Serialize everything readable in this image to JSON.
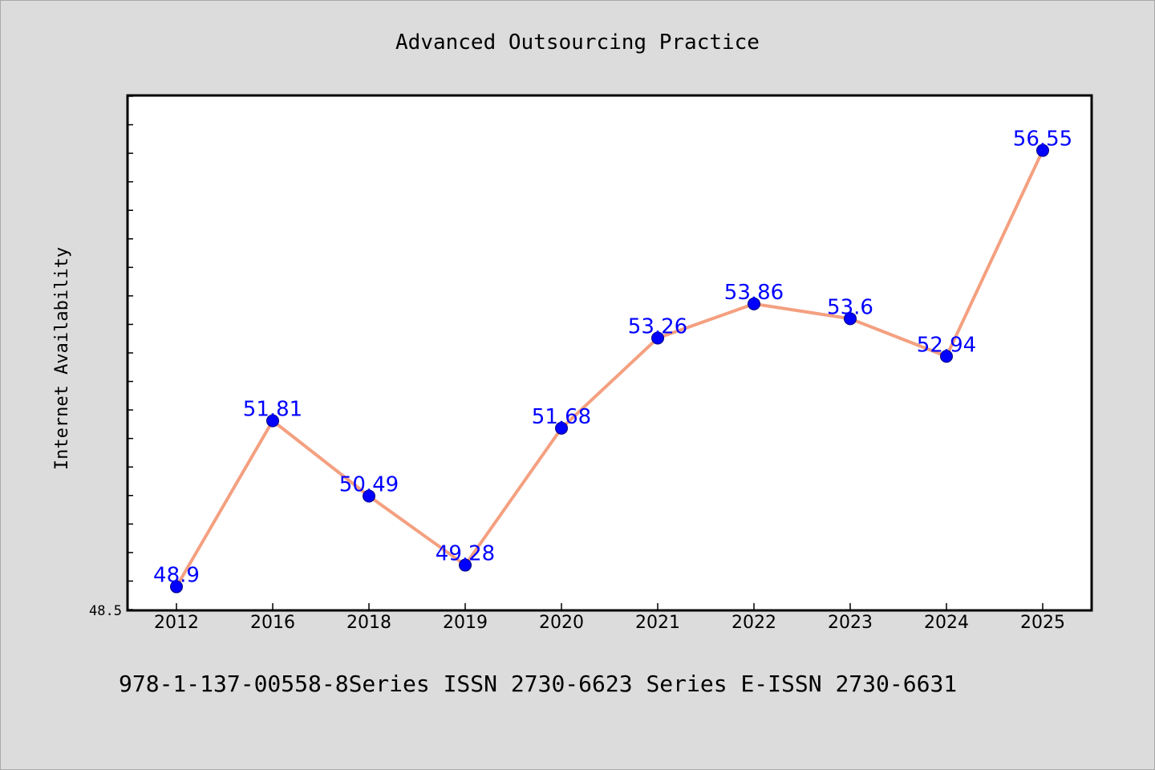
{
  "chart_data": {
    "type": "line",
    "title": "Advanced Outsourcing Practice",
    "xlabel": "",
    "ylabel": "Internet Availability",
    "categories": [
      "2012",
      "2016",
      "2018",
      "2019",
      "2020",
      "2021",
      "2022",
      "2023",
      "2024",
      "2025"
    ],
    "series": [
      {
        "values": [
          48.9,
          51.81,
          50.49,
          49.28,
          51.68,
          53.26,
          53.86,
          53.6,
          52.94,
          56.55
        ]
      }
    ],
    "data_labels": [
      "48.9",
      "51.81",
      "50.49",
      "49.28",
      "51.68",
      "53.26",
      "53.86",
      "53.6",
      "52.94",
      "56.55"
    ],
    "ylim": [
      48.5,
      57.5
    ],
    "y_tick_labels": [
      "48.5"
    ],
    "grid": false,
    "legend": "none",
    "colors": {
      "line": "#f4a080",
      "marker": "#0000ff",
      "label": "#0000ff",
      "background": "#dcdcdc",
      "plot_area": "#ffffff"
    }
  },
  "footer": {
    "text": "978-1-137-00558-8Series ISSN 2730-6623 Series E-ISSN 2730-6631"
  }
}
